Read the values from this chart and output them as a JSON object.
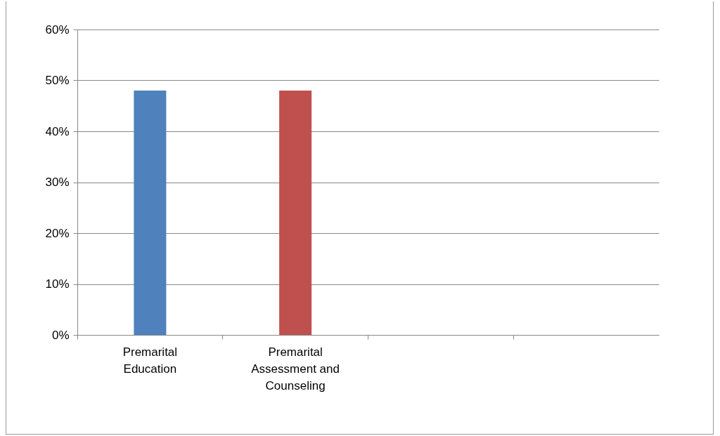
{
  "chart_data": {
    "type": "bar",
    "categories": [
      "Premarital Education",
      "Premarital Assessment and Counseling",
      null,
      null
    ],
    "values": [
      48,
      48,
      null,
      null
    ],
    "colors": [
      "#4f81bd",
      "#c0504d",
      null,
      null
    ],
    "ylim": [
      0,
      60
    ],
    "yticks": [
      {
        "value": 0,
        "label": "0%"
      },
      {
        "value": 10,
        "label": "10%"
      },
      {
        "value": 20,
        "label": "20%"
      },
      {
        "value": 30,
        "label": "30%"
      },
      {
        "value": 40,
        "label": "40%"
      },
      {
        "value": 50,
        "label": "50%"
      },
      {
        "value": 60,
        "label": "60%"
      }
    ],
    "grid": "y"
  }
}
